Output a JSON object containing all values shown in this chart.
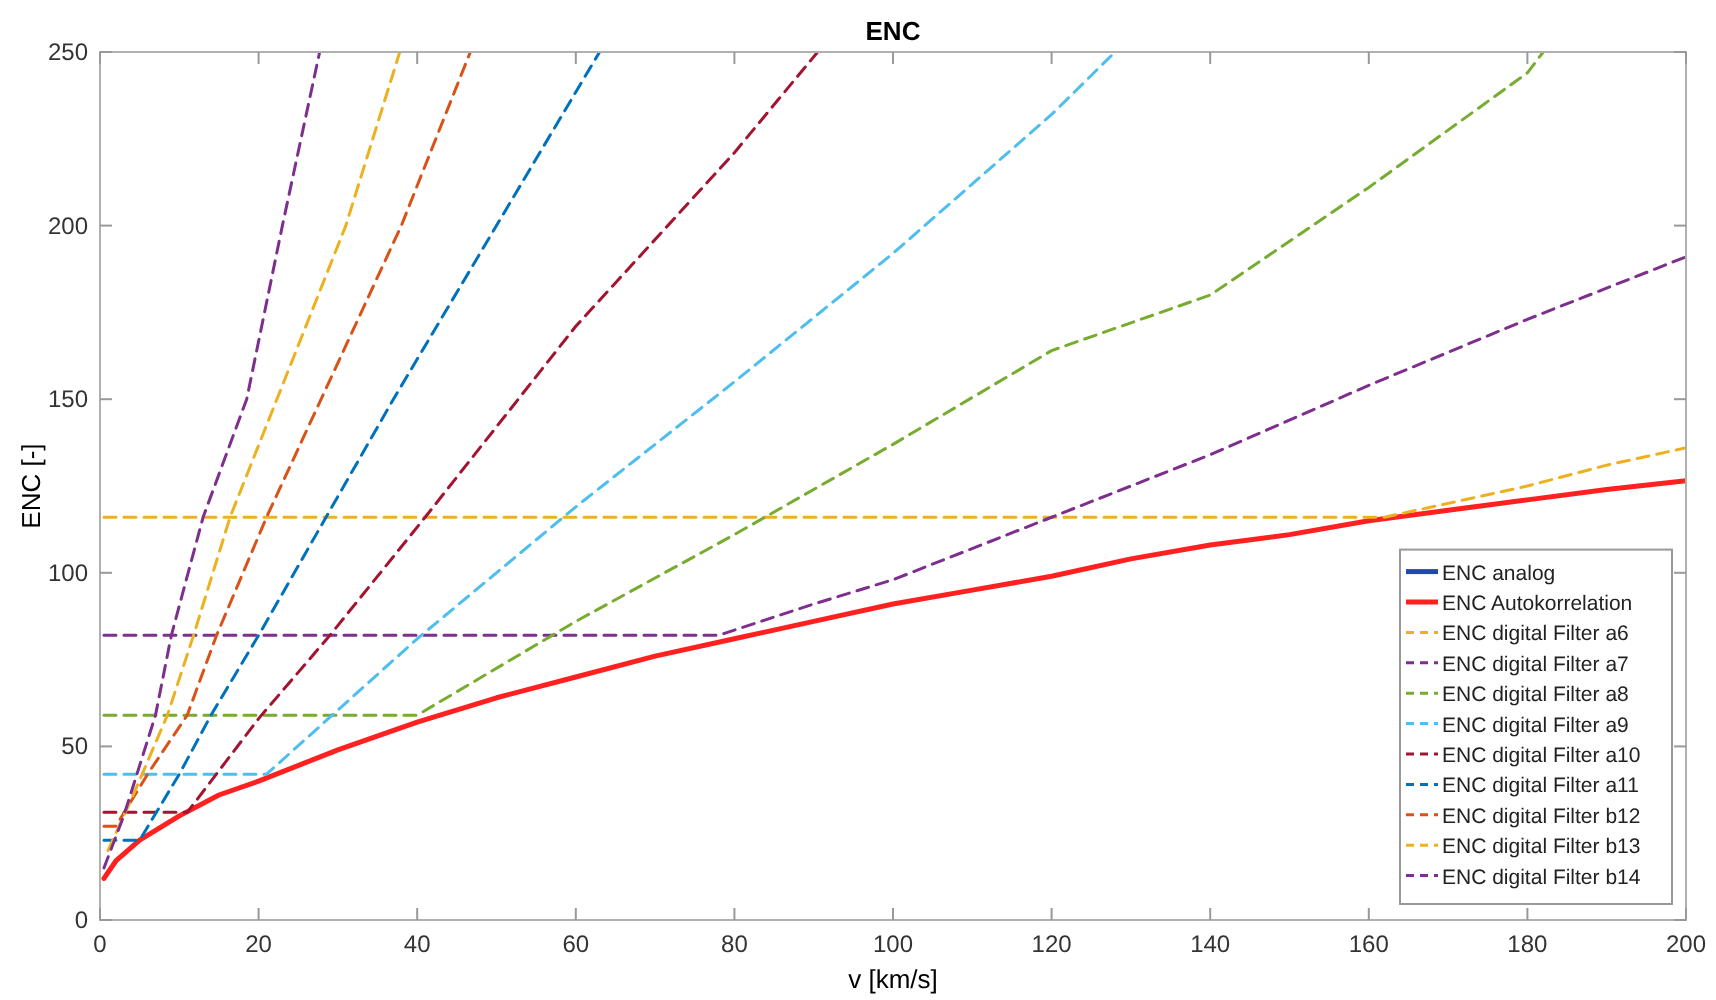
{
  "chart_data": {
    "type": "line",
    "title": "ENC",
    "xlabel": "v [km/s]",
    "ylabel": "ENC [-]",
    "xlim": [
      0,
      200
    ],
    "ylim": [
      0,
      250
    ],
    "xticks": [
      0,
      20,
      40,
      60,
      80,
      100,
      120,
      140,
      160,
      180,
      200
    ],
    "yticks": [
      0,
      50,
      100,
      150,
      200,
      250
    ],
    "grid": false,
    "legend": "bottom right",
    "series": [
      {
        "name": "ENC analog",
        "color": "#2346b0",
        "line_style": "solid"
      },
      {
        "name": "ENC Autokorrelation",
        "color": "#ff2020",
        "line_style": "solid",
        "x": [
          0.5,
          2,
          5,
          10,
          15,
          20,
          30,
          40,
          50,
          60,
          70,
          80,
          90,
          100,
          110,
          120,
          130,
          140,
          150,
          160,
          170,
          180,
          190,
          200
        ],
        "values": [
          12,
          17,
          23,
          30,
          36,
          40,
          49,
          57,
          64,
          70,
          76,
          81,
          86,
          91,
          95,
          99,
          104,
          108,
          111,
          115,
          118,
          121,
          124,
          126.5
        ]
      },
      {
        "name": "ENC digital Filter a6",
        "color": "#edb120",
        "line_style": "dashed",
        "x": [
          0.5,
          162,
          170,
          180,
          190,
          200
        ],
        "values": [
          116,
          116,
          120,
          125,
          131,
          136
        ]
      },
      {
        "name": "ENC digital Filter a7",
        "color": "#7e2f8e",
        "line_style": "dashed",
        "x": [
          0.5,
          78,
          90,
          100,
          120,
          140,
          160,
          180,
          200
        ],
        "values": [
          82,
          82,
          91,
          98,
          116,
          134,
          154,
          173,
          191
        ]
      },
      {
        "name": "ENC digital Filter a8",
        "color": "#77ac30",
        "line_style": "dashed",
        "x": [
          0.5,
          40,
          60,
          80,
          100,
          120,
          140,
          160,
          180,
          182
        ],
        "values": [
          59,
          59,
          86,
          111,
          137,
          164,
          180,
          211,
          244,
          250
        ]
      },
      {
        "name": "ENC digital Filter a9",
        "color": "#4dbeee",
        "line_style": "dashed",
        "x": [
          0.5,
          21,
          40,
          60,
          80,
          100,
          120,
          128
        ],
        "values": [
          42,
          42,
          81,
          119,
          155,
          192,
          232,
          250
        ]
      },
      {
        "name": "ENC digital Filter a10",
        "color": "#a2142f",
        "line_style": "dashed",
        "x": [
          0.5,
          11,
          20,
          29,
          41,
          60,
          80,
          90.5
        ],
        "values": [
          31,
          31,
          58,
          82,
          116,
          171,
          221,
          250
        ]
      },
      {
        "name": "ENC digital Filter a11",
        "color": "#0072bd",
        "line_style": "dashed",
        "x": [
          0.5,
          5,
          10,
          14,
          20,
          28.5,
          37,
          50,
          63
        ],
        "values": [
          23,
          23,
          42,
          59,
          82,
          116,
          150,
          200,
          250
        ]
      },
      {
        "name": "ENC digital Filter b12",
        "color": "#d95319",
        "line_style": "dashed",
        "x": [
          0.5,
          2,
          6,
          11,
          14.7,
          21,
          38,
          46.7
        ],
        "values": [
          27,
          27,
          42,
          59,
          82,
          116,
          200,
          250
        ]
      },
      {
        "name": "ENC digital Filter b13",
        "color": "#edb120",
        "line_style": "dashed",
        "x": [
          1,
          4,
          8.5,
          11.8,
          16.4,
          31,
          37.8
        ],
        "values": [
          20,
          35,
          59,
          82,
          116,
          200,
          250
        ]
      },
      {
        "name": "ENC digital Filter b14",
        "color": "#7e2f8e",
        "line_style": "dashed",
        "x": [
          0.5,
          3,
          7,
          9,
          13,
          18.5,
          23,
          27.7
        ],
        "values": [
          15,
          30,
          59,
          82,
          116,
          150,
          200,
          250
        ]
      }
    ]
  }
}
